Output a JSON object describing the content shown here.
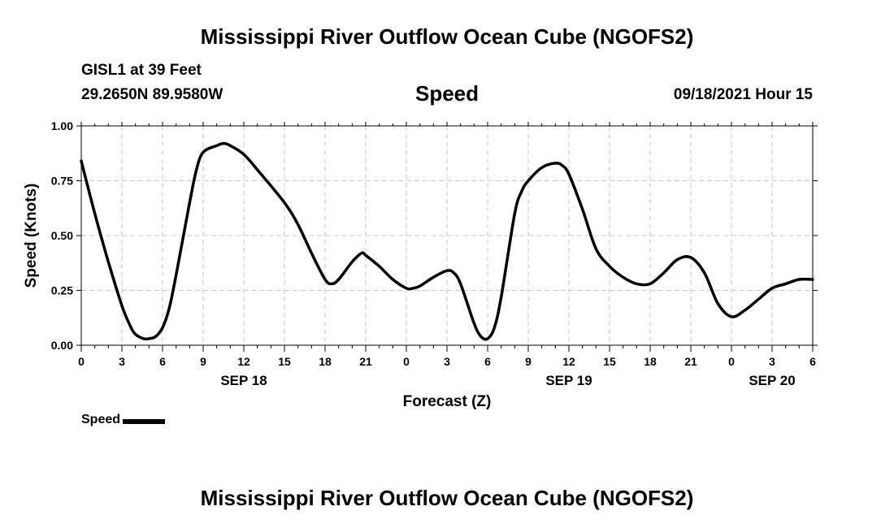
{
  "header": {
    "title": "Mississippi River Outflow Ocean Cube (NGOFS2)",
    "station": "GISL1 at 39 Feet",
    "coords": "29.2650N  89.9580W",
    "variable": "Speed",
    "datetime": "09/18/2021 Hour 15"
  },
  "footer": {
    "title": "Mississippi River Outflow Ocean Cube (NGOFS2)"
  },
  "legend": {
    "label": "Speed",
    "color": "#000000"
  },
  "chart_data": {
    "type": "line",
    "title": "Speed",
    "xlabel": "Forecast (Z)",
    "ylabel": "Speed (Knots)",
    "xlim": [
      0,
      54
    ],
    "ylim": [
      0,
      1
    ],
    "yticks": [
      0,
      0.25,
      0.5,
      0.75,
      1.0
    ],
    "ytick_labels": [
      "0.00",
      "0.25",
      "0.50",
      "0.75",
      "1.00"
    ],
    "xticks": [
      0,
      3,
      6,
      9,
      12,
      15,
      18,
      21,
      24,
      27,
      30,
      33,
      36,
      39,
      42,
      45,
      48,
      51,
      54
    ],
    "xtick_labels": [
      "0",
      "3",
      "6",
      "9",
      "12",
      "15",
      "18",
      "21",
      "0",
      "3",
      "6",
      "9",
      "12",
      "15",
      "18",
      "21",
      "0",
      "3",
      "6"
    ],
    "date_labels": [
      {
        "x": 12,
        "label": "SEP 18"
      },
      {
        "x": 36,
        "label": "SEP 19"
      },
      {
        "x": 51,
        "label": "SEP 20"
      }
    ],
    "grid": true,
    "series": [
      {
        "name": "Speed",
        "color": "#000000",
        "x": [
          0,
          1,
          2,
          3,
          3.6,
          4,
          4.6,
          5,
          5.5,
          6,
          6.5,
          7,
          8,
          8.5,
          9,
          10,
          10.5,
          11,
          12,
          13,
          15,
          16,
          17,
          18,
          18.5,
          19,
          20,
          20.7,
          21,
          22,
          23,
          24,
          24.5,
          25,
          26,
          27,
          27.5,
          28,
          29,
          29.5,
          30,
          30.5,
          31,
          32,
          32.5,
          33,
          34,
          35,
          35.5,
          36,
          37,
          38,
          39,
          40,
          41,
          42,
          43,
          44,
          45,
          46,
          47,
          48,
          49,
          50,
          51,
          52,
          53,
          54
        ],
        "y": [
          0.84,
          0.6,
          0.38,
          0.18,
          0.09,
          0.05,
          0.03,
          0.03,
          0.04,
          0.08,
          0.17,
          0.32,
          0.65,
          0.8,
          0.88,
          0.91,
          0.92,
          0.91,
          0.87,
          0.8,
          0.65,
          0.55,
          0.42,
          0.3,
          0.28,
          0.3,
          0.38,
          0.42,
          0.41,
          0.36,
          0.3,
          0.26,
          0.26,
          0.27,
          0.31,
          0.34,
          0.33,
          0.28,
          0.1,
          0.04,
          0.03,
          0.08,
          0.22,
          0.6,
          0.7,
          0.75,
          0.81,
          0.83,
          0.82,
          0.78,
          0.62,
          0.44,
          0.36,
          0.31,
          0.28,
          0.28,
          0.33,
          0.39,
          0.4,
          0.33,
          0.19,
          0.13,
          0.16,
          0.21,
          0.26,
          0.28,
          0.3,
          0.3
        ]
      }
    ]
  }
}
